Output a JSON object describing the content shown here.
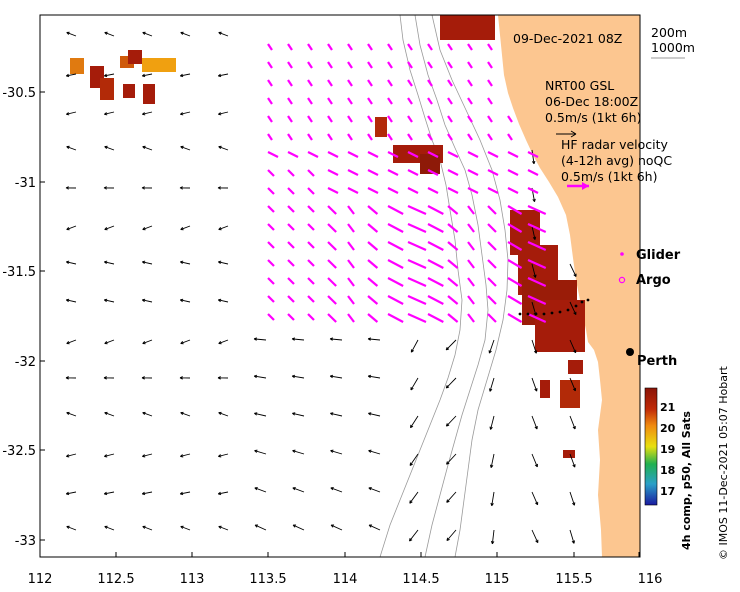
{
  "map": {
    "date_label": "09-Dec-2021 08Z",
    "depth_labels": [
      "200m",
      "1000m"
    ],
    "model_label": [
      "NRT00 GSL",
      "06-Dec 18:00Z",
      "0.5m/s (1kt 6h)"
    ],
    "radar_label": [
      "HF radar velocity",
      "(4-12h avg) noQC",
      "0.5m/s (1kt 6h)"
    ],
    "glider_label": "Glider",
    "argo_label": "Argo",
    "city_label": "Perth",
    "credit": "© IMOS 11-Dec-2021 05:07 Hobart",
    "colorbar_title": "4h comp, p50, All Sats",
    "colorbar_ticks": [
      "21",
      "20",
      "19",
      "18",
      "17"
    ],
    "lon_ticks": [
      "112",
      "112.5",
      "113",
      "113.5",
      "114",
      "114.5",
      "115",
      "115.5",
      "116"
    ],
    "lat_ticks": [
      "-30.5",
      "-31",
      "-31.5",
      "-32",
      "-32.5",
      "-33"
    ],
    "colors": {
      "land": "#fcc690",
      "radar_vectors": "#ff00ff",
      "model_vectors": "#000000",
      "sst_warm": "#a51c0a",
      "bathymetry": "#9a9a9a"
    }
  }
}
